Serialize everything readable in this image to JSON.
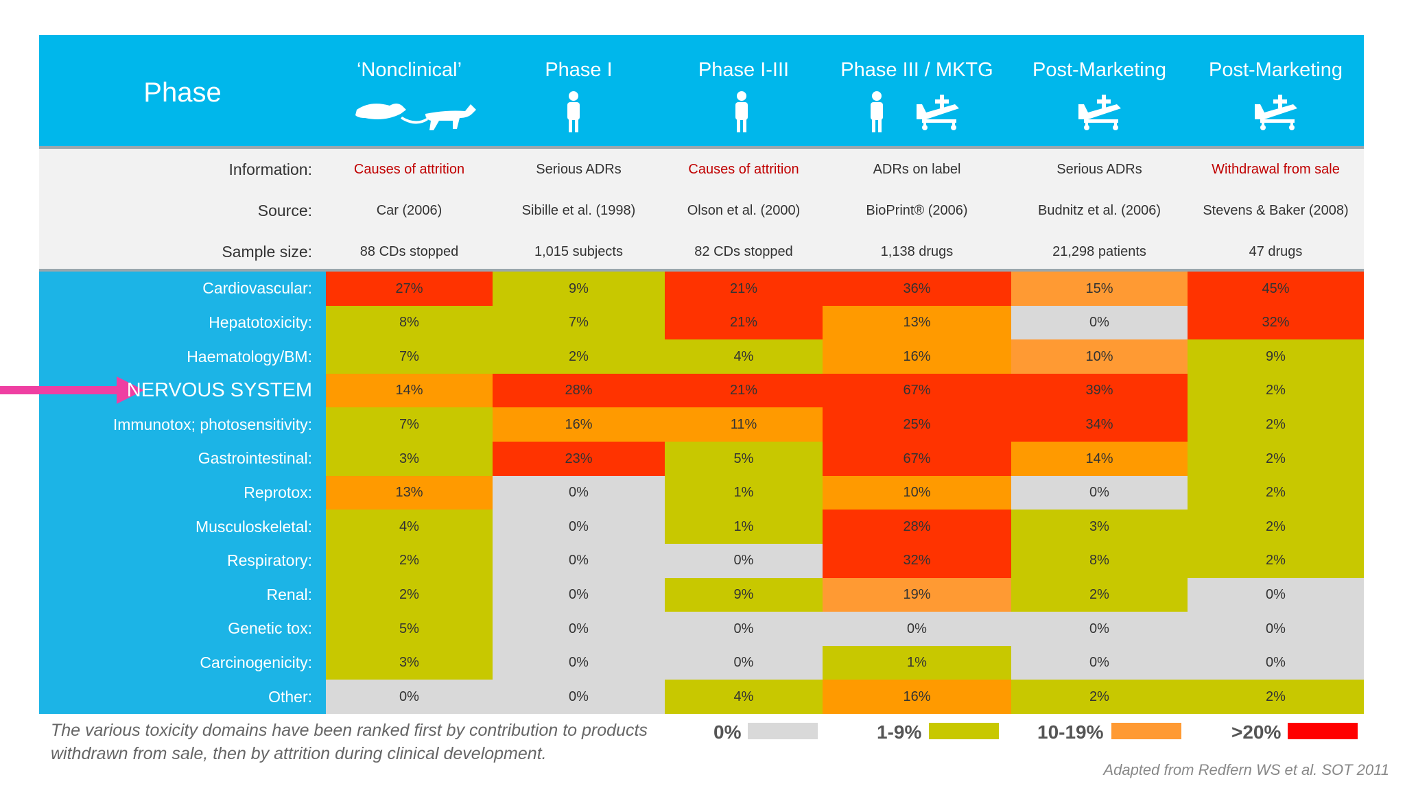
{
  "header": {
    "title": "Phase",
    "columns": [
      "‘Nonclinical’",
      "Phase I",
      "Phase I-III",
      "Phase III / MKTG",
      "Post-Marketing",
      "Post-Marketing"
    ]
  },
  "info": {
    "rows": [
      {
        "label": "Information:",
        "values": [
          "Causes of attrition",
          "Serious ADRs",
          "Causes of attrition",
          "ADRs on label",
          "Serious ADRs",
          "Withdrawal from sale"
        ],
        "colors": [
          "#c00000",
          "#333333",
          "#c00000",
          "#333333",
          "#333333",
          "#c00000"
        ]
      },
      {
        "label": "Source:",
        "values": [
          "Car (2006)",
          "Sibille et al. (1998)",
          "Olson et al. (2000)",
          "BioPrint® (2006)",
          "Budnitz et al. (2006)",
          "Stevens & Baker (2008)"
        ]
      },
      {
        "label": "Sample size:",
        "values": [
          "88 CDs stopped",
          "1,015 subjects",
          "82 CDs stopped",
          "1,138 drugs",
          "21,298 patients",
          "47 drugs"
        ]
      }
    ]
  },
  "table": {
    "rows": [
      {
        "label": "Cardiovascular:",
        "values": [
          "27%",
          "9%",
          "21%",
          "36%",
          "15%",
          "45%"
        ],
        "colors": [
          "#ff3300",
          "#c8c800",
          "#ff3300",
          "#ff3300",
          "#ff9a33",
          "#ff3300"
        ]
      },
      {
        "label": "Hepatotoxicity:",
        "values": [
          "8%",
          "7%",
          "21%",
          "13%",
          "0%",
          "32%"
        ],
        "colors": [
          "#c8c800",
          "#c8c800",
          "#ff3300",
          "#ff9a00",
          "#d9d9d9",
          "#ff3300"
        ]
      },
      {
        "label": "Haematology/BM:",
        "values": [
          "7%",
          "2%",
          "4%",
          "16%",
          "10%",
          "9%"
        ],
        "colors": [
          "#c8c800",
          "#c8c800",
          "#c8c800",
          "#ff9a00",
          "#ff9a33",
          "#c8c800"
        ]
      },
      {
        "label": "NERVOUS SYSTEM",
        "values": [
          "14%",
          "28%",
          "21%",
          "67%",
          "39%",
          "2%"
        ],
        "colors": [
          "#ff9a00",
          "#ff3300",
          "#ff3300",
          "#ff3300",
          "#ff3300",
          "#c8c800"
        ]
      },
      {
        "label": "Immunotox; photosensitivity:",
        "values": [
          "7%",
          "16%",
          "11%",
          "25%",
          "34%",
          "2%"
        ],
        "colors": [
          "#c8c800",
          "#ff9a00",
          "#ff9a00",
          "#ff3300",
          "#ff3300",
          "#c8c800"
        ]
      },
      {
        "label": "Gastrointestinal:",
        "values": [
          "3%",
          "23%",
          "5%",
          "67%",
          "14%",
          "2%"
        ],
        "colors": [
          "#c8c800",
          "#ff3300",
          "#c8c800",
          "#ff3300",
          "#ff9a00",
          "#c8c800"
        ]
      },
      {
        "label": "Reprotox:",
        "values": [
          "13%",
          "0%",
          "1%",
          "10%",
          "0%",
          "2%"
        ],
        "colors": [
          "#ff9a00",
          "#d9d9d9",
          "#c8c800",
          "#ff9a00",
          "#d9d9d9",
          "#c8c800"
        ]
      },
      {
        "label": "Musculoskeletal:",
        "values": [
          "4%",
          "0%",
          "1%",
          "28%",
          "3%",
          "2%"
        ],
        "colors": [
          "#c8c800",
          "#d9d9d9",
          "#c8c800",
          "#ff3300",
          "#c8c800",
          "#c8c800"
        ]
      },
      {
        "label": "Respiratory:",
        "values": [
          "2%",
          "0%",
          "0%",
          "32%",
          "8%",
          "2%"
        ],
        "colors": [
          "#c8c800",
          "#d9d9d9",
          "#d9d9d9",
          "#ff3300",
          "#c8c800",
          "#c8c800"
        ]
      },
      {
        "label": "Renal:",
        "values": [
          "2%",
          "0%",
          "9%",
          "19%",
          "2%",
          "0%"
        ],
        "colors": [
          "#c8c800",
          "#d9d9d9",
          "#c8c800",
          "#ff9a33",
          "#c8c800",
          "#d9d9d9"
        ]
      },
      {
        "label": "Genetic tox:",
        "values": [
          "5%",
          "0%",
          "0%",
          "0%",
          "0%",
          "0%"
        ],
        "colors": [
          "#c8c800",
          "#d9d9d9",
          "#d9d9d9",
          "#d9d9d9",
          "#d9d9d9",
          "#d9d9d9"
        ]
      },
      {
        "label": "Carcinogenicity:",
        "values": [
          "3%",
          "0%",
          "0%",
          "1%",
          "0%",
          "0%"
        ],
        "colors": [
          "#c8c800",
          "#d9d9d9",
          "#d9d9d9",
          "#c8c800",
          "#d9d9d9",
          "#d9d9d9"
        ]
      },
      {
        "label": "Other:",
        "values": [
          "0%",
          "0%",
          "4%",
          "16%",
          "2%",
          "2%"
        ],
        "colors": [
          "#d9d9d9",
          "#d9d9d9",
          "#c8c800",
          "#ff9a00",
          "#c8c800",
          "#c8c800"
        ]
      }
    ]
  },
  "footnote": [
    "The various toxicity domains have been ranked first by contribution to products",
    "withdrawn from sale, then by attrition during clinical development."
  ],
  "legend": [
    {
      "label": "0%",
      "color": "#d9d9d9"
    },
    {
      "label": "1-9%",
      "color": "#c8c800"
    },
    {
      "label": "10-19%",
      "color": "#ff9a33"
    },
    {
      "label": ">20%",
      "color": "#ff0000"
    }
  ],
  "credit": "Adapted from Redfern WS et al. SOT 2011"
}
